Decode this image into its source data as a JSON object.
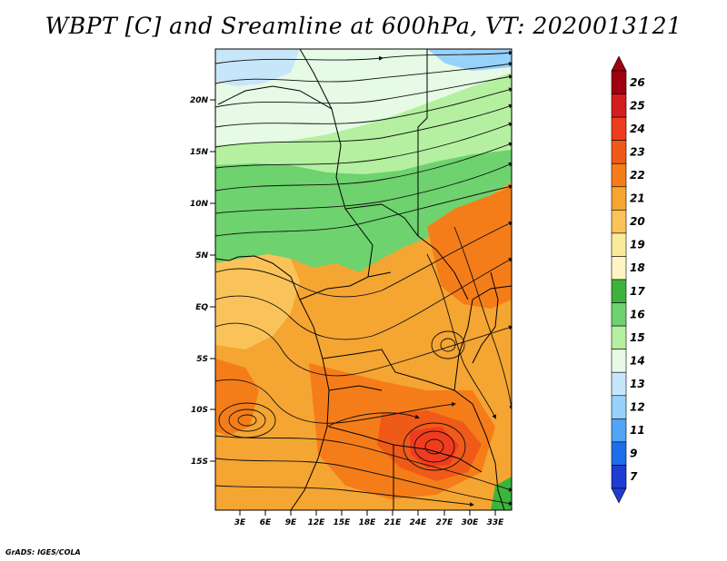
{
  "title": "WBPT [C] and Sreamline at 600hPa, VT: 2020013121",
  "footer": "GrADS: IGES/COLA",
  "map": {
    "lat_labels": [
      "20N",
      "15N",
      "10N",
      "5N",
      "EQ",
      "5S",
      "10S",
      "15S"
    ],
    "lon_labels": [
      "3E",
      "6E",
      "9E",
      "12E",
      "15E",
      "18E",
      "21E",
      "24E",
      "27E",
      "30E",
      "33E"
    ]
  },
  "colorbar": {
    "levels": [
      "26",
      "25",
      "24",
      "23",
      "22",
      "21",
      "20",
      "19",
      "18",
      "17",
      "16",
      "15",
      "14",
      "13",
      "12",
      "11",
      "9",
      "7"
    ],
    "colors": [
      "#a0000f",
      "#d21e1e",
      "#f03c1e",
      "#f05a19",
      "#f57d19",
      "#f5a532",
      "#fac35a",
      "#faeb9b",
      "#fff5c3",
      "#3cb43c",
      "#6ed26e",
      "#b4f0a0",
      "#e6fae6",
      "#c8e6fa",
      "#96d2fa",
      "#50a5f5",
      "#1e6eeb",
      "#1e3cd2"
    ]
  }
}
